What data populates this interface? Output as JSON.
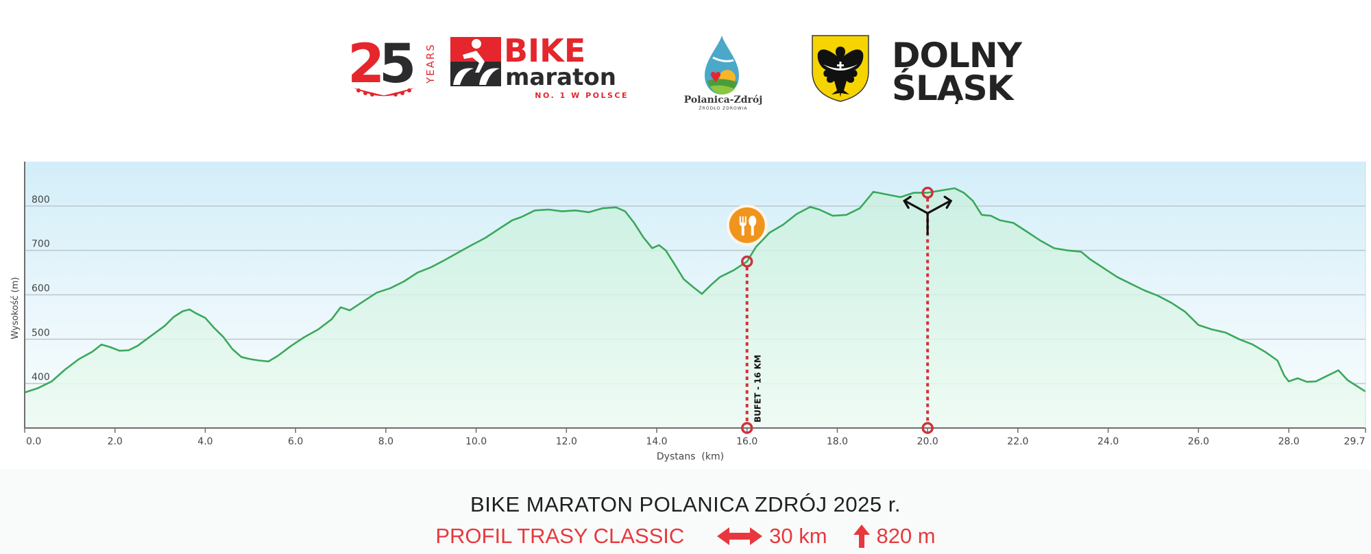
{
  "logos": {
    "anniversary": {
      "number_a": "2",
      "number_b": "5",
      "label": "YEARS"
    },
    "bike_maraton": {
      "word1": "BIKE",
      "word2": "maraton",
      "tagline": "NO. 1 W POLSCE"
    },
    "polanica": {
      "name": "Polanica-Zdrój",
      "tagline": "ŹRÓDŁO ZDROWIA"
    },
    "dolny_slask": {
      "line1": "DOLNY",
      "line2": "ŚLĄSK"
    }
  },
  "chart_data": {
    "type": "area",
    "title": "BIKE MARATON POLANICA ZDRÓJ 2025 r.",
    "xlabel": "Dystans  (km)",
    "ylabel": "Wysokość (m)",
    "xlim": [
      0,
      29.7
    ],
    "ylim": [
      300,
      900
    ],
    "x_ticks": [
      "0.0",
      "2.0",
      "4.0",
      "6.0",
      "8.0",
      "10.0",
      "12.0",
      "14.0",
      "16.0",
      "18.0",
      "20.0",
      "22.0",
      "24.0",
      "26.0",
      "28.0",
      "29.7"
    ],
    "x_tick_values": [
      0,
      2,
      4,
      6,
      8,
      10,
      12,
      14,
      16,
      18,
      20,
      22,
      24,
      26,
      28,
      29.7
    ],
    "y_ticks": [
      400,
      500,
      600,
      700,
      800
    ],
    "grid": true,
    "series": [
      {
        "name": "Profil trasy",
        "color": "#3aa85a",
        "x": [
          0,
          0.3,
          0.6,
          0.9,
          1.2,
          1.5,
          1.7,
          1.9,
          2.1,
          2.3,
          2.5,
          2.7,
          2.9,
          3.1,
          3.3,
          3.5,
          3.65,
          3.8,
          4.0,
          4.2,
          4.4,
          4.6,
          4.8,
          5.0,
          5.2,
          5.4,
          5.6,
          5.9,
          6.2,
          6.5,
          6.8,
          7.0,
          7.2,
          7.5,
          7.8,
          8.1,
          8.4,
          8.7,
          9.0,
          9.3,
          9.6,
          9.9,
          10.2,
          10.5,
          10.8,
          11.0,
          11.3,
          11.6,
          11.9,
          12.2,
          12.5,
          12.8,
          13.1,
          13.3,
          13.5,
          13.7,
          13.9,
          14.05,
          14.2,
          14.4,
          14.6,
          14.8,
          15.0,
          15.2,
          15.4,
          15.7,
          16.0,
          16.2,
          16.5,
          16.8,
          17.1,
          17.4,
          17.6,
          17.9,
          18.2,
          18.5,
          18.8,
          19.1,
          19.4,
          19.7,
          20.0,
          20.3,
          20.6,
          20.8,
          21.0,
          21.2,
          21.4,
          21.6,
          21.9,
          22.2,
          22.5,
          22.8,
          23.1,
          23.4,
          23.6,
          23.9,
          24.2,
          24.5,
          24.8,
          25.1,
          25.4,
          25.7,
          26.0,
          26.3,
          26.6,
          26.9,
          27.2,
          27.5,
          27.75,
          27.9,
          28.0,
          28.2,
          28.4,
          28.6,
          28.8,
          29.0,
          29.1,
          29.3,
          29.5,
          29.7
        ],
        "y": [
          380,
          390,
          405,
          432,
          455,
          472,
          488,
          482,
          474,
          475,
          485,
          500,
          515,
          530,
          550,
          563,
          567,
          558,
          548,
          525,
          505,
          478,
          460,
          455,
          452,
          450,
          462,
          485,
          505,
          522,
          545,
          572,
          565,
          585,
          605,
          615,
          630,
          650,
          662,
          678,
          695,
          712,
          728,
          748,
          768,
          775,
          790,
          792,
          788,
          790,
          786,
          795,
          797,
          788,
          762,
          730,
          705,
          712,
          700,
          668,
          635,
          618,
          602,
          622,
          640,
          655,
          675,
          708,
          740,
          758,
          782,
          798,
          792,
          778,
          780,
          795,
          832,
          826,
          820,
          830,
          830,
          835,
          840,
          830,
          812,
          780,
          778,
          768,
          762,
          742,
          722,
          705,
          700,
          697,
          680,
          660,
          640,
          625,
          610,
          598,
          582,
          562,
          532,
          522,
          515,
          500,
          488,
          470,
          452,
          418,
          405,
          412,
          404,
          405,
          415,
          425,
          430,
          408,
          395,
          382
        ]
      }
    ],
    "annotations": [
      {
        "type": "point",
        "label": "BUFET - 16 KM",
        "icon": "fork-spoon-icon",
        "x": 16.0,
        "y": 675
      },
      {
        "type": "point",
        "label": "",
        "icon": "route-split-icon",
        "x": 20.0,
        "y": 830
      }
    ]
  },
  "footer": {
    "title": "BIKE MARATON POLANICA ZDRÓJ 2025 r.",
    "profile_label": "PROFIL TRASY CLASSIC",
    "distance": "30 km",
    "distance_icon": "double-arrow-horizontal-icon",
    "ascent": "820 m",
    "ascent_icon": "arrow-up-icon",
    "accent_color": "#e8383d"
  }
}
